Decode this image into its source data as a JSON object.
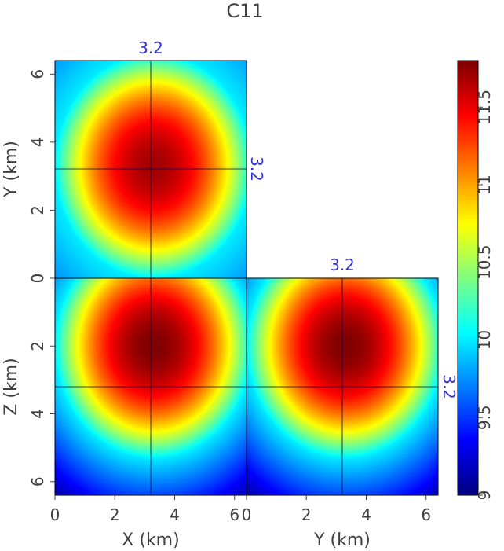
{
  "chart_data": {
    "type": "heatmap",
    "title": "C11",
    "colormap": "jet",
    "colorbar": {
      "range": [
        9,
        11.8
      ],
      "ticks": [
        "9",
        "9.5",
        "10",
        "10.5",
        "11",
        "11.5"
      ],
      "tick_values": [
        9,
        9.5,
        10,
        10.5,
        11,
        11.5
      ]
    },
    "panels": [
      {
        "name": "depth-slice",
        "plane": "X-Y",
        "xlabel": "",
        "ylabel": "Y (km)",
        "x_range": [
          0,
          6.4
        ],
        "y_range": [
          0,
          6.4
        ],
        "x_ticks": [],
        "y_ticks": [
          "0",
          "2",
          "4",
          "6"
        ],
        "center": [
          3.3,
          3.3
        ],
        "value_center": 11.7,
        "value_edge": 10.0,
        "value_corner": 9.75
      },
      {
        "name": "inline-section",
        "plane": "X-Z",
        "xlabel": "X (km)",
        "ylabel": "Z (km)",
        "x_range": [
          0,
          6.4
        ],
        "z_range": [
          0,
          6.4
        ],
        "x_ticks": [
          "0",
          "2",
          "4",
          "6"
        ],
        "y_ticks": [
          "0",
          "2",
          "4",
          "6"
        ],
        "center": [
          3.3,
          2.0
        ],
        "value_center": 11.8,
        "value_edge": 10.0,
        "value_corner": 9.1
      },
      {
        "name": "crossline-section",
        "plane": "Y-Z",
        "xlabel": "Y (km)",
        "ylabel": "",
        "x_range": [
          0,
          6.4
        ],
        "z_range": [
          0,
          6.4
        ],
        "x_ticks": [
          "0",
          "2",
          "4",
          "6"
        ],
        "y_ticks": [],
        "center": [
          3.3,
          2.0
        ],
        "value_center": 11.8,
        "value_edge": 10.0,
        "value_corner": 9.1
      }
    ],
    "slice_markers": {
      "x": "3.2",
      "y": "3.2",
      "z": "3.2"
    }
  }
}
